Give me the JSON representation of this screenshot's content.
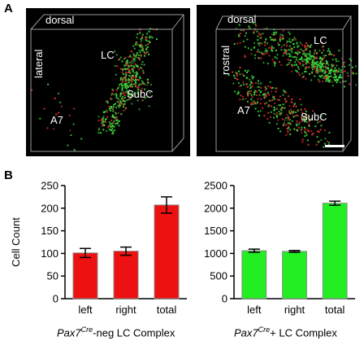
{
  "figure": {
    "panel_a": "A",
    "panel_b": "B"
  },
  "micrographs": {
    "left": {
      "labels": {
        "dorsal": "dorsal",
        "lateral": "lateral",
        "lc": "LC",
        "subc": "SubC",
        "a7": "A7"
      }
    },
    "right": {
      "labels": {
        "dorsal": "dorsal",
        "rostral": "rostral",
        "lc": "LC",
        "subc": "SubC",
        "a7": "A7"
      }
    },
    "colors": {
      "green": "#3ddc3d",
      "red": "#e8342f",
      "frame": "#9a9a9a"
    }
  },
  "chart_data": [
    {
      "type": "bar",
      "categories": [
        "left",
        "right",
        "total"
      ],
      "values": [
        101,
        105,
        207
      ],
      "errors": [
        10,
        9,
        18
      ],
      "ylabel": "Cell Count",
      "ylim": [
        0,
        250
      ],
      "yticks": [
        0,
        50,
        100,
        150,
        200,
        250
      ],
      "xtitle_gene": "Pax7",
      "xtitle_sup": "Cre",
      "xtitle_rest": "-neg LC Complex",
      "color": "#ee1111"
    },
    {
      "type": "bar",
      "categories": [
        "left",
        "right",
        "total"
      ],
      "values": [
        1060,
        1045,
        2110
      ],
      "errors": [
        35,
        20,
        45
      ],
      "ylabel": "",
      "ylim": [
        0,
        2500
      ],
      "yticks": [
        0,
        500,
        1000,
        1500,
        2000,
        2500
      ],
      "xtitle_gene": "Pax7",
      "xtitle_sup": "Cre",
      "xtitle_rest": "+ LC Complex",
      "color": "#22ee22"
    }
  ]
}
